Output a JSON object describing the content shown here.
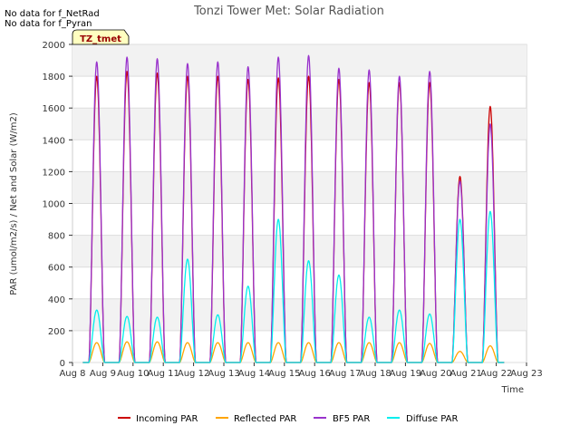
{
  "chart_data": {
    "type": "line",
    "title": "Tonzi Tower Met: Solar Radiation",
    "xlabel": "Time",
    "ylabel": "PAR (umol/m2/s) / Net and Solar (W/m2)",
    "ylim": [
      0,
      2000
    ],
    "xlim": [
      8,
      23
    ],
    "yticks": [
      0,
      200,
      400,
      600,
      800,
      1000,
      1200,
      1400,
      1600,
      1800,
      2000
    ],
    "xticks": [
      {
        "value": 8,
        "label": "Aug 8"
      },
      {
        "value": 9,
        "label": "Aug 9"
      },
      {
        "value": 10,
        "label": "Aug 10"
      },
      {
        "value": 11,
        "label": "Aug 11"
      },
      {
        "value": 12,
        "label": "Aug 12"
      },
      {
        "value": 13,
        "label": "Aug 13"
      },
      {
        "value": 14,
        "label": "Aug 14"
      },
      {
        "value": 15,
        "label": "Aug 15"
      },
      {
        "value": 16,
        "label": "Aug 16"
      },
      {
        "value": 17,
        "label": "Aug 17"
      },
      {
        "value": 18,
        "label": "Aug 18"
      },
      {
        "value": 19,
        "label": "Aug 19"
      },
      {
        "value": 20,
        "label": "Aug 20"
      },
      {
        "value": 21,
        "label": "Aug 21"
      },
      {
        "value": 22,
        "label": "Aug 22"
      },
      {
        "value": 23,
        "label": "Aug 23"
      }
    ],
    "day_centers": [
      8.8,
      9.8,
      10.8,
      11.8,
      12.8,
      13.8,
      14.8,
      15.8,
      16.8,
      17.8,
      18.8,
      19.8,
      20.8,
      21.8
    ],
    "day_half_width": 0.26,
    "series": [
      {
        "name": "Incoming PAR",
        "color": "#cc0000",
        "daily_peaks": [
          1800,
          1830,
          1820,
          1800,
          1800,
          1780,
          1790,
          1800,
          1780,
          1760,
          1760,
          1760,
          1170,
          1610
        ]
      },
      {
        "name": "Reflected PAR",
        "color": "#ffa500",
        "daily_peaks": [
          125,
          130,
          130,
          125,
          125,
          125,
          125,
          125,
          125,
          125,
          125,
          120,
          70,
          105
        ]
      },
      {
        "name": "BF5 PAR",
        "color": "#9933cc",
        "daily_peaks": [
          1890,
          1920,
          1910,
          1880,
          1890,
          1860,
          1920,
          1930,
          1850,
          1840,
          1800,
          1830,
          1140,
          1500
        ]
      },
      {
        "name": "Diffuse PAR",
        "color": "#00eeee",
        "daily_peaks": [
          330,
          290,
          285,
          650,
          300,
          480,
          900,
          640,
          550,
          285,
          330,
          305,
          900,
          950
        ]
      }
    ],
    "legend_position": "bottom",
    "grid": true
  },
  "notes": [
    "No data for f_NetRad",
    "No data for f_Pyran"
  ],
  "badge": "TZ_tmet"
}
